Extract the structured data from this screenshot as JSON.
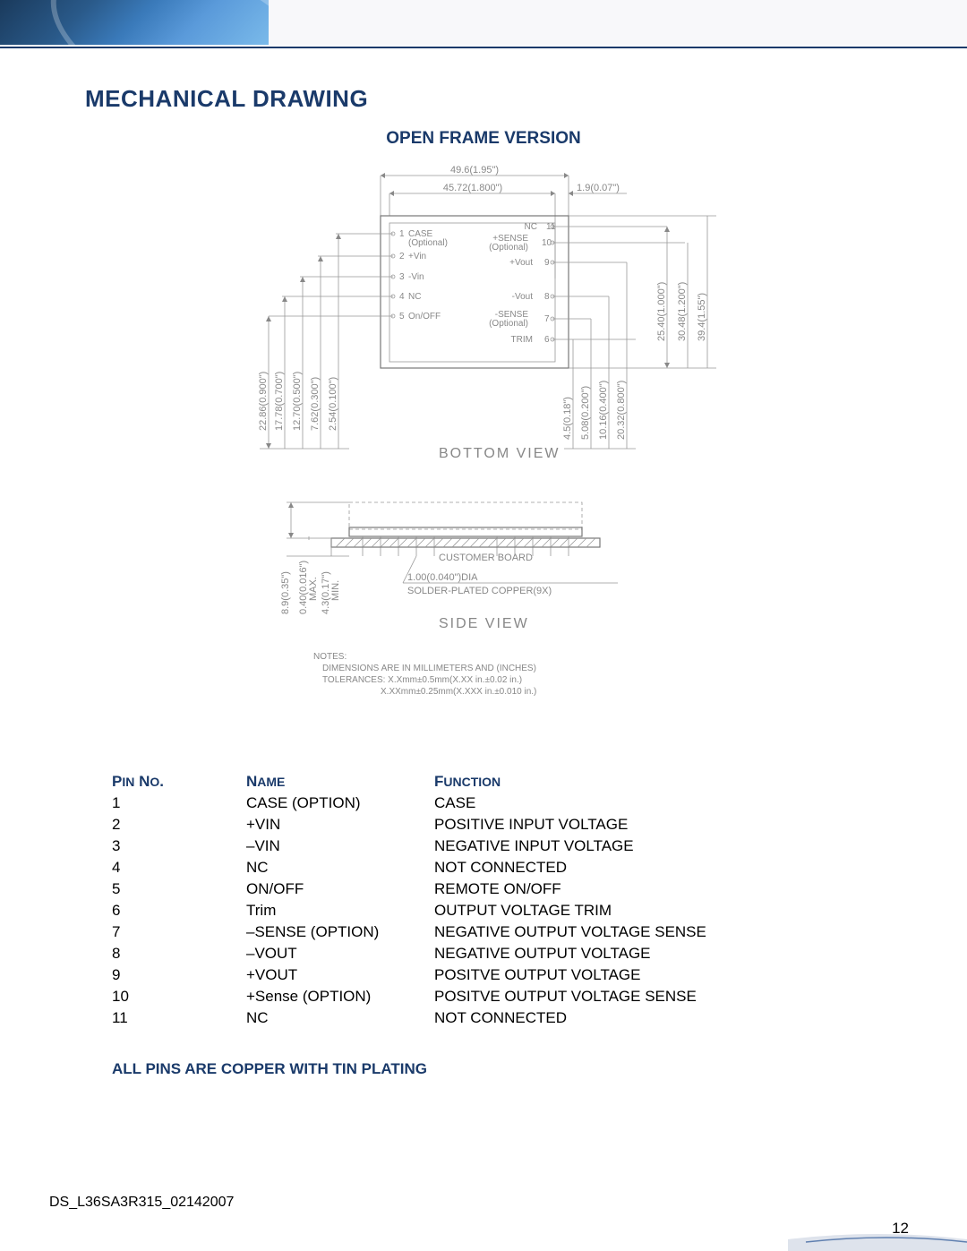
{
  "colors": {
    "heading": "#1a3a6a",
    "body_text": "#000000",
    "drawing_line": "#888888",
    "background": "#ffffff"
  },
  "header": {
    "title": "MECHANICAL DRAWING",
    "subtitle": "OPEN FRAME VERSION"
  },
  "drawing": {
    "bottom_view": {
      "label": "BOTTOM VIEW",
      "dims_top": [
        {
          "text": "49.6(1.95\")"
        },
        {
          "text": "45.72(1.800\")"
        },
        {
          "text": "1.9(0.07\")"
        }
      ],
      "dims_left": [
        {
          "text": "22.86(0.900\")"
        },
        {
          "text": "17.78(0.700\")"
        },
        {
          "text": "12.70(0.500\")"
        },
        {
          "text": "7.62(0.300\")"
        },
        {
          "text": "2.54(0.100\")"
        }
      ],
      "dims_right_far": [
        {
          "text": "25.40(1.000\")"
        },
        {
          "text": "30.48(1.200\")"
        },
        {
          "text": "39.4(1.55\")"
        }
      ],
      "dims_right_near": [
        {
          "text": "4.5(0.18\")"
        },
        {
          "text": "5.08(0.200\")"
        },
        {
          "text": "10.16(0.400\")"
        },
        {
          "text": "20.32(0.800\")"
        }
      ],
      "pins_left": [
        {
          "num": "1",
          "label": "CASE",
          "sub": "(Optional)"
        },
        {
          "num": "2",
          "label": "+Vin"
        },
        {
          "num": "3",
          "label": "-Vin"
        },
        {
          "num": "4",
          "label": "NC"
        },
        {
          "num": "5",
          "label": "On/OFF"
        }
      ],
      "pins_right": [
        {
          "num": "11",
          "label": "NC"
        },
        {
          "num": "10",
          "label": "+SENSE",
          "sub": "(Optional)"
        },
        {
          "num": "9",
          "label": "+Vout"
        },
        {
          "num": "8",
          "label": "-Vout"
        },
        {
          "num": "7",
          "label": "-SENSE",
          "sub": "(Optional)"
        },
        {
          "num": "6",
          "label": "TRIM"
        }
      ]
    },
    "side_view": {
      "label": "SIDE VIEW",
      "customer_board": "CUSTOMER BOARD",
      "pin_spec": "1.00(0.040\")DIA",
      "pin_material": "SOLDER-PLATED COPPER(9X)",
      "dims": [
        {
          "text": "8.9(0.35\")"
        },
        {
          "text": "0.40(0.016\")",
          "sub": "MAX."
        },
        {
          "text": "4.3(0.17\")",
          "sub": "MIN."
        }
      ]
    },
    "notes": {
      "heading": "NOTES:",
      "lines": [
        "DIMENSIONS ARE IN MILLIMETERS AND (INCHES)",
        "TOLERANCES: X.Xmm±0.5mm(X.XX in.±0.02 in.)",
        "X.XXmm±0.25mm(X.XXX in.±0.010 in.)"
      ]
    }
  },
  "pin_table": {
    "headers": {
      "pin": "Pin No.",
      "name": "Name",
      "func": "Function"
    },
    "header_style": {
      "color": "#1a3a6a",
      "weight": "bold",
      "transform": "capitalize-small-caps"
    },
    "rows": [
      {
        "pin": "1",
        "name": "CASE (OPTION)",
        "func": "CASE"
      },
      {
        "pin": "2",
        "name": "+VIN",
        "func": "POSITIVE INPUT VOLTAGE"
      },
      {
        "pin": "3",
        "name": "–VIN",
        "func": "NEGATIVE INPUT VOLTAGE"
      },
      {
        "pin": "4",
        "name": "NC",
        "func": "NOT CONNECTED"
      },
      {
        "pin": "5",
        "name": "ON/OFF",
        "func": "REMOTE ON/OFF"
      },
      {
        "pin": "6",
        "name": "Trim",
        "func": "OUTPUT VOLTAGE TRIM"
      },
      {
        "pin": "7",
        "name": "–SENSE (OPTION)",
        "func": "NEGATIVE OUTPUT VOLTAGE SENSE"
      },
      {
        "pin": "8",
        "name": "–VOUT",
        "func": "NEGATIVE OUTPUT VOLTAGE"
      },
      {
        "pin": "9",
        "name": "+VOUT",
        "func": "POSITVE OUTPUT VOLTAGE"
      },
      {
        "pin": "10",
        "name": "+Sense (OPTION)",
        "func": "POSITVE OUTPUT VOLTAGE SENSE"
      },
      {
        "pin": "11",
        "name": "NC",
        "func": "NOT CONNECTED"
      }
    ]
  },
  "pin_note": "ALL PINS ARE COPPER WITH TIN PLATING",
  "footer": {
    "doc_id": "DS_L36SA3R315_02142007",
    "page": "12"
  }
}
